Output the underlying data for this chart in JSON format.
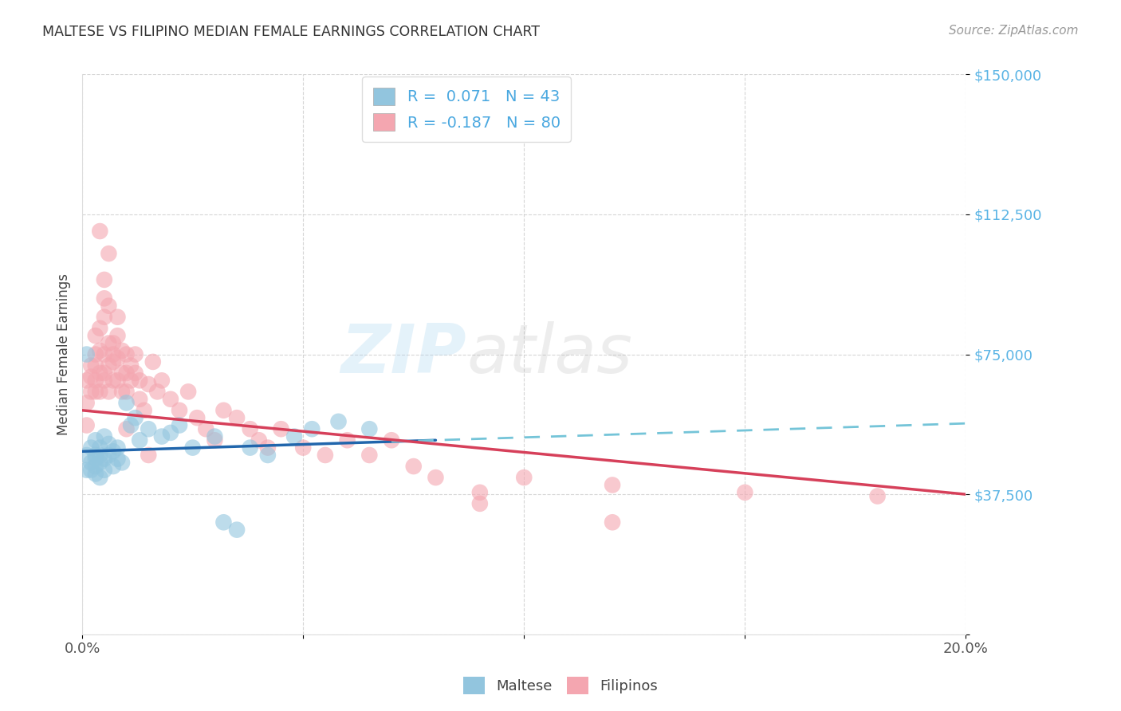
{
  "title": "MALTESE VS FILIPINO MEDIAN FEMALE EARNINGS CORRELATION CHART",
  "source": "Source: ZipAtlas.com",
  "ylabel": "Median Female Earnings",
  "watermark_zip": "ZIP",
  "watermark_atlas": "atlas",
  "xlim": [
    0.0,
    0.2
  ],
  "ylim": [
    0,
    150000
  ],
  "yticks": [
    0,
    37500,
    75000,
    112500,
    150000
  ],
  "ytick_labels": [
    "",
    "$37,500",
    "$75,000",
    "$112,500",
    "$150,000"
  ],
  "xticks": [
    0.0,
    0.05,
    0.1,
    0.15,
    0.2
  ],
  "xtick_labels": [
    "0.0%",
    "",
    "",
    "",
    "20.0%"
  ],
  "maltese_R": 0.071,
  "maltese_N": 43,
  "filipino_R": -0.187,
  "filipino_N": 80,
  "blue_color": "#92c5de",
  "pink_color": "#f4a6b0",
  "trend_blue": "#2166ac",
  "trend_blue_dash": "#74c4d8",
  "trend_pink": "#d6405a",
  "background_color": "#ffffff",
  "grid_color": "#cccccc",
  "maltese_x": [
    0.001,
    0.001,
    0.002,
    0.002,
    0.002,
    0.003,
    0.003,
    0.003,
    0.003,
    0.004,
    0.004,
    0.004,
    0.005,
    0.005,
    0.005,
    0.006,
    0.006,
    0.007,
    0.007,
    0.008,
    0.008,
    0.009,
    0.01,
    0.011,
    0.012,
    0.013,
    0.015,
    0.018,
    0.02,
    0.022,
    0.025,
    0.03,
    0.032,
    0.035,
    0.038,
    0.042,
    0.048,
    0.052,
    0.058,
    0.065,
    0.001,
    0.003,
    0.004
  ],
  "maltese_y": [
    75000,
    48000,
    50000,
    46000,
    44000,
    52000,
    47000,
    45000,
    43000,
    50000,
    48000,
    46000,
    53000,
    47000,
    44000,
    51000,
    48000,
    49000,
    45000,
    50000,
    47000,
    46000,
    62000,
    56000,
    58000,
    52000,
    55000,
    53000,
    54000,
    56000,
    50000,
    53000,
    30000,
    28000,
    50000,
    48000,
    53000,
    55000,
    57000,
    55000,
    44000,
    48000,
    42000
  ],
  "filipino_x": [
    0.001,
    0.001,
    0.001,
    0.002,
    0.002,
    0.002,
    0.003,
    0.003,
    0.003,
    0.003,
    0.003,
    0.004,
    0.004,
    0.004,
    0.004,
    0.005,
    0.005,
    0.005,
    0.005,
    0.005,
    0.006,
    0.006,
    0.006,
    0.006,
    0.007,
    0.007,
    0.007,
    0.008,
    0.008,
    0.008,
    0.009,
    0.009,
    0.009,
    0.01,
    0.01,
    0.01,
    0.011,
    0.011,
    0.012,
    0.012,
    0.013,
    0.013,
    0.014,
    0.015,
    0.016,
    0.017,
    0.018,
    0.02,
    0.022,
    0.024,
    0.026,
    0.028,
    0.03,
    0.032,
    0.035,
    0.038,
    0.04,
    0.042,
    0.045,
    0.05,
    0.055,
    0.06,
    0.065,
    0.07,
    0.075,
    0.08,
    0.09,
    0.1,
    0.12,
    0.15,
    0.004,
    0.005,
    0.006,
    0.007,
    0.008,
    0.01,
    0.015,
    0.09,
    0.12,
    0.18
  ],
  "filipino_y": [
    62000,
    68000,
    56000,
    65000,
    72000,
    69000,
    68000,
    75000,
    72000,
    80000,
    65000,
    82000,
    76000,
    70000,
    65000,
    90000,
    85000,
    95000,
    75000,
    68000,
    102000,
    88000,
    78000,
    72000,
    78000,
    73000,
    68000,
    85000,
    80000,
    74000,
    76000,
    70000,
    65000,
    75000,
    70000,
    65000,
    72000,
    68000,
    75000,
    70000,
    68000,
    63000,
    60000,
    67000,
    73000,
    65000,
    68000,
    63000,
    60000,
    65000,
    58000,
    55000,
    52000,
    60000,
    58000,
    55000,
    52000,
    50000,
    55000,
    50000,
    48000,
    52000,
    48000,
    52000,
    45000,
    42000,
    38000,
    42000,
    40000,
    38000,
    108000,
    70000,
    65000,
    75000,
    68000,
    55000,
    48000,
    35000,
    30000,
    37000
  ]
}
